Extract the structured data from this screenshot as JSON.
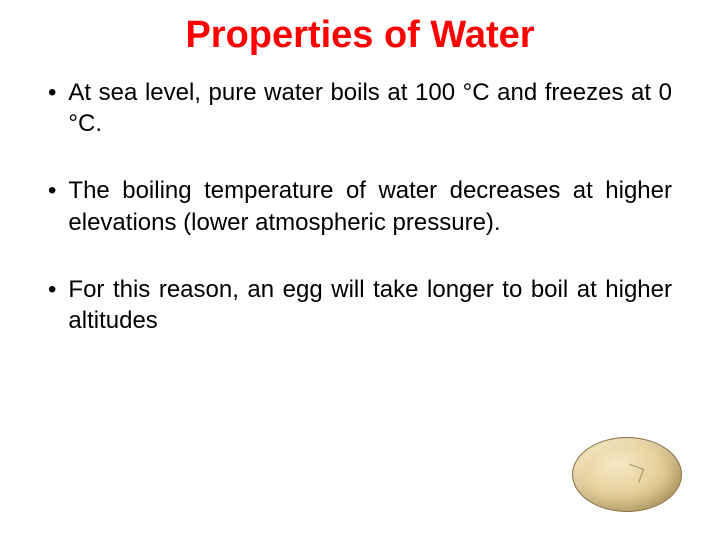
{
  "title": {
    "text": "Properties of Water",
    "color": "#ff0000",
    "fontsize": 38
  },
  "bullets": {
    "color": "#000000",
    "fontsize": 24,
    "items": [
      "At sea level, pure water boils at 100 °C and freezes at 0 °C.",
      "The boiling temperature of water decreases at higher elevations (lower atmospheric pressure).",
      "For this reason, an egg will take longer to boil at higher altitudes"
    ]
  },
  "egg": {
    "fill_light": "#f5e8c8",
    "fill_mid": "#e8d4a0",
    "fill_dark": "#b89860",
    "border": "#8a7040"
  },
  "background_color": "#ffffff"
}
